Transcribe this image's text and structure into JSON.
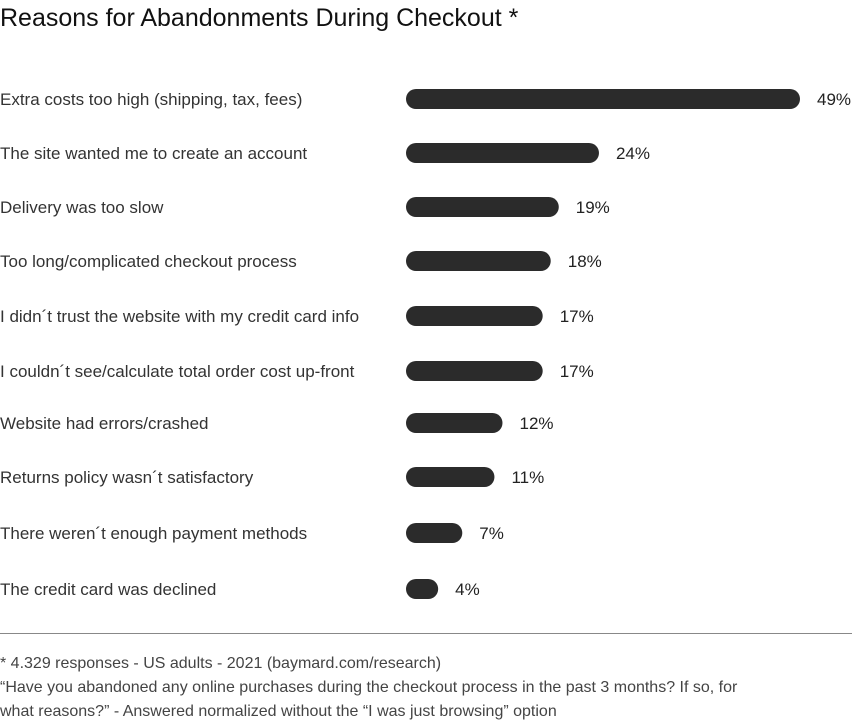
{
  "chart_data": {
    "type": "bar",
    "orientation": "horizontal",
    "title": "Reasons for Abandonments During Checkout *",
    "categories": [
      "Extra costs too high (shipping, tax, fees)",
      "The site wanted me to create an account",
      "Delivery was too slow",
      "Too long/complicated checkout process",
      "I didn´t trust the website with my credit card info",
      "I couldn´t see/calculate total order cost up-front",
      "Website had errors/crashed",
      "Returns policy wasn´t satisfactory",
      "There weren´t enough payment methods",
      "The credit card was declined"
    ],
    "values": [
      49,
      24,
      19,
      18,
      17,
      17,
      12,
      11,
      7,
      4
    ],
    "value_labels": [
      "49%",
      "24%",
      "19%",
      "18%",
      "17%",
      "17%",
      "12%",
      "11%",
      "7%",
      "4%"
    ],
    "unit": "%",
    "xlim": [
      0,
      49
    ],
    "grid": false,
    "bar_color": "#2b2b2b"
  },
  "footnote": {
    "line1": "* 4.329 responses - US adults - 2021 (baymard.com/research)",
    "line2": "“Have you abandoned any online purchases during the checkout process in the past 3 months? If so, for",
    "line3": "what reasons?” - Answered normalized without the “I was just browsing” option"
  }
}
